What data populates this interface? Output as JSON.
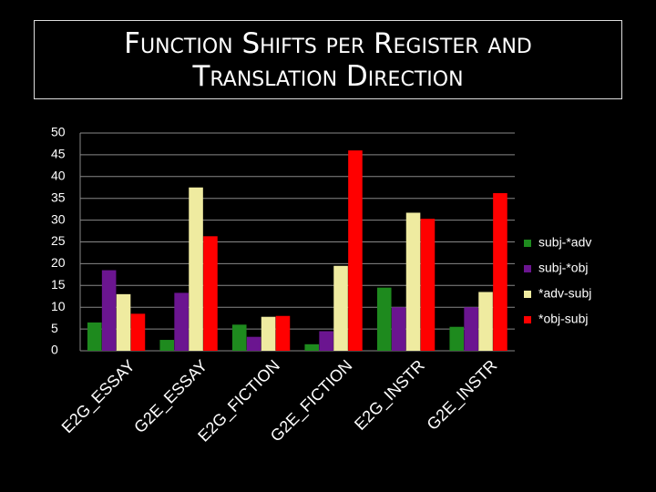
{
  "chart_data": {
    "type": "bar",
    "title": "Function Shifts per Register and Translation Direction",
    "categories": [
      "E2G_ESSAY",
      "G2E_ESSAY",
      "E2G_FICTION",
      "G2E_FICTION",
      "E2G_INSTR",
      "G2E_INSTR"
    ],
    "series": [
      {
        "name": "subj-*adv",
        "color": "#1e8a1e",
        "values": [
          6.5,
          2.5,
          6,
          1.5,
          14.5,
          5.5
        ]
      },
      {
        "name": "subj-*obj",
        "color": "#6b1590",
        "values": [
          18.5,
          13.3,
          3.2,
          4.5,
          10,
          10
        ]
      },
      {
        "name": "*adv-subj",
        "color": "#efeba0",
        "values": [
          13,
          37.5,
          7.8,
          19.5,
          31.7,
          13.5
        ]
      },
      {
        "name": "*obj-subj",
        "color": "#ff0000",
        "values": [
          8.5,
          26.3,
          8,
          46,
          30.3,
          36.2
        ]
      }
    ],
    "ylim": [
      0,
      50
    ],
    "yticks": [
      0,
      5,
      10,
      15,
      20,
      25,
      30,
      35,
      40,
      45,
      50
    ],
    "grid": true,
    "legend": "right"
  }
}
